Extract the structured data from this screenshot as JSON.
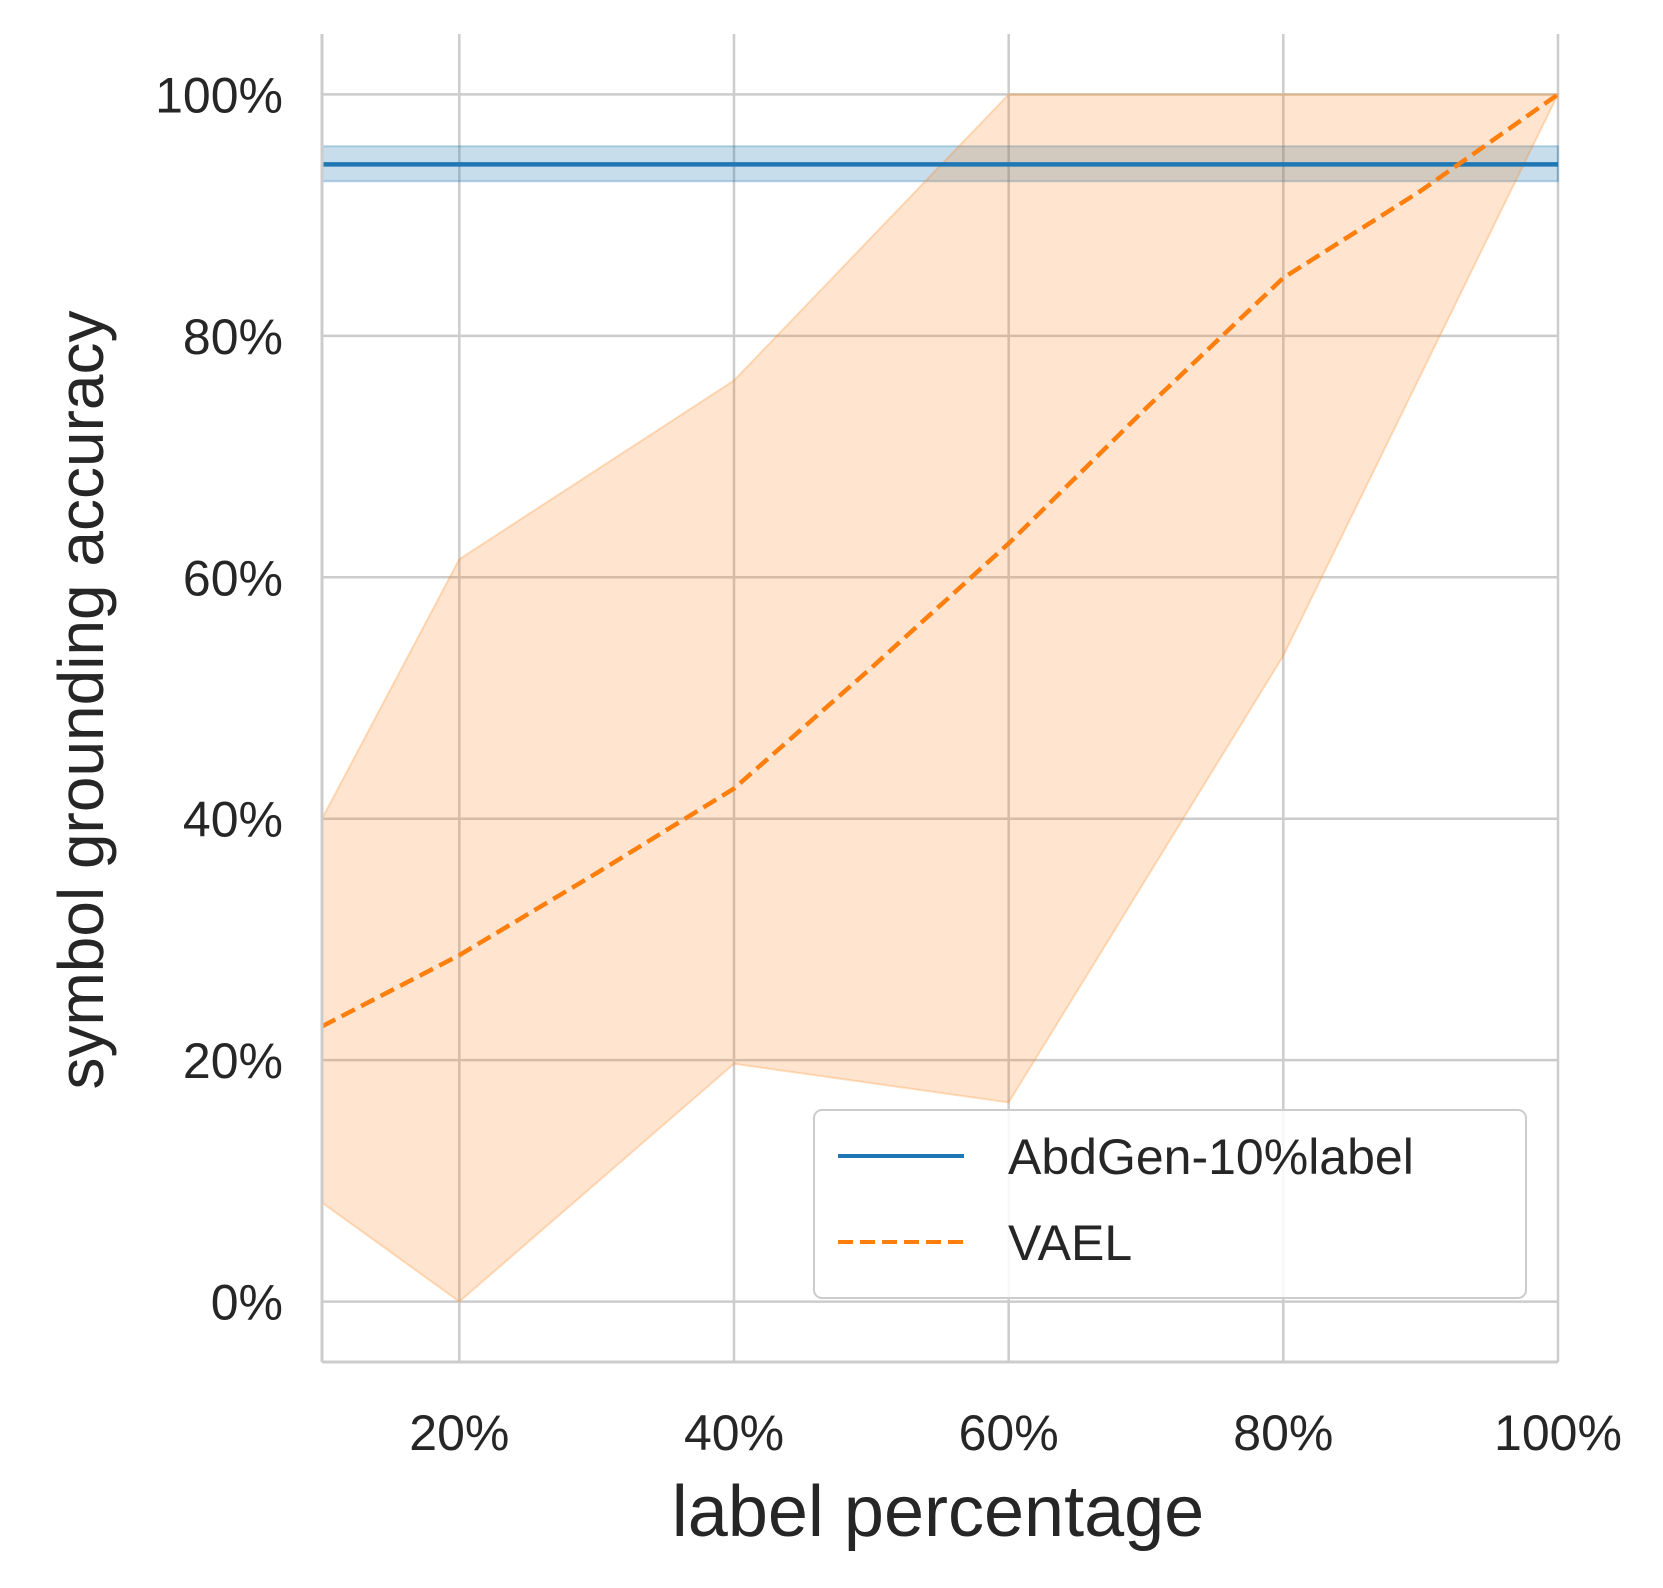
{
  "chart_data": {
    "type": "line",
    "x_unit": "%",
    "y_unit": "%",
    "xlim": [
      10,
      100
    ],
    "ylim": [
      -5,
      105
    ],
    "xticks": [
      20,
      40,
      60,
      80,
      100
    ],
    "yticks": [
      0,
      20,
      40,
      60,
      80,
      100
    ],
    "xtick_labels": [
      "20%",
      "40%",
      "60%",
      "80%",
      "100%"
    ],
    "ytick_labels": [
      "0%",
      "20%",
      "40%",
      "60%",
      "80%",
      "100%"
    ],
    "xlabel": "label percentage",
    "ylabel": "symbol grounding accuracy",
    "grid": true,
    "legend_position": "lower-right",
    "series": [
      {
        "name": "AbdGen-10%label",
        "style": "solid",
        "color": "#1f77b4",
        "x": [
          10,
          100
        ],
        "y": [
          94.2,
          94.2
        ],
        "band_lower": [
          92.8,
          92.8
        ],
        "band_upper": [
          95.7,
          95.7
        ]
      },
      {
        "name": "VAEL",
        "style": "dashed",
        "color": "#ff7f0e",
        "x": [
          10,
          20,
          30,
          40,
          50,
          60,
          70,
          80,
          90,
          100
        ],
        "y": [
          22.8,
          28.7,
          35.5,
          42.5,
          52.5,
          62.8,
          74.0,
          84.8,
          92.0,
          100.0
        ],
        "band_x": [
          10,
          20,
          40,
          60,
          80,
          100
        ],
        "band_lower": [
          8.2,
          0.0,
          19.7,
          16.5,
          53.5,
          100.0
        ],
        "band_upper": [
          40.0,
          61.5,
          76.3,
          100.0,
          100.0,
          100.0
        ]
      }
    ]
  }
}
